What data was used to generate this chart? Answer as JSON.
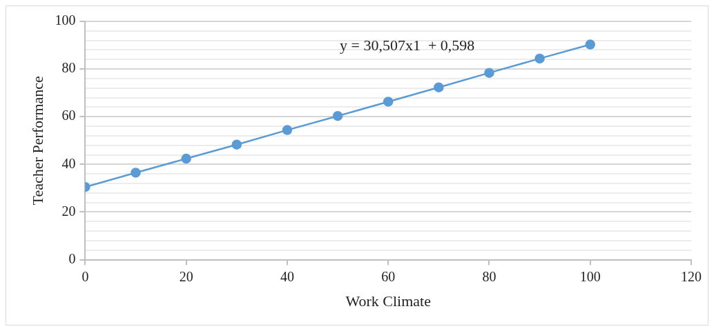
{
  "chart_data": {
    "type": "line",
    "xlabel": "Work Climate",
    "ylabel": "Teacher Performance",
    "x": [
      0,
      10,
      20,
      30,
      40,
      50,
      60,
      70,
      80,
      90,
      100
    ],
    "series": [
      {
        "color": "#5b9bd5",
        "values": [
          30.5,
          36.5,
          42.4,
          48.3,
          54.4,
          60.3,
          66.3,
          72.3,
          78.4,
          84.4,
          90.3
        ]
      }
    ],
    "xlim": [
      0,
      120
    ],
    "xticks": [
      0,
      20,
      40,
      60,
      80,
      100,
      120
    ],
    "ylim": [
      0,
      100
    ],
    "yticks": [
      0,
      {
        "value": 4,
        "label": null
      },
      {
        "value": 8,
        "label": null
      },
      {
        "value": 12,
        "label": null
      },
      {
        "value": 16,
        "label": null
      },
      20,
      {
        "value": 24,
        "label": null
      },
      {
        "value": 28,
        "label": null
      },
      {
        "value": 32,
        "label": null
      },
      {
        "value": 36,
        "label": null
      },
      40,
      {
        "value": 44,
        "label": null
      },
      {
        "value": 48,
        "label": null
      },
      {
        "value": 52,
        "label": null
      },
      {
        "value": 56,
        "label": null
      },
      60,
      {
        "value": 64,
        "label": null
      },
      {
        "value": 68,
        "label": null
      },
      {
        "value": 72,
        "label": null
      },
      {
        "value": 76,
        "label": null
      },
      80,
      {
        "value": 84,
        "label": null
      },
      {
        "value": 88,
        "label": null
      },
      {
        "value": 92,
        "label": null
      },
      {
        "value": 96,
        "label": null
      },
      100
    ],
    "annotations": [
      "y = 30,507x1  + 0,598"
    ],
    "grid": "y",
    "marker": "circle",
    "line_style": "solid",
    "legend": false
  }
}
